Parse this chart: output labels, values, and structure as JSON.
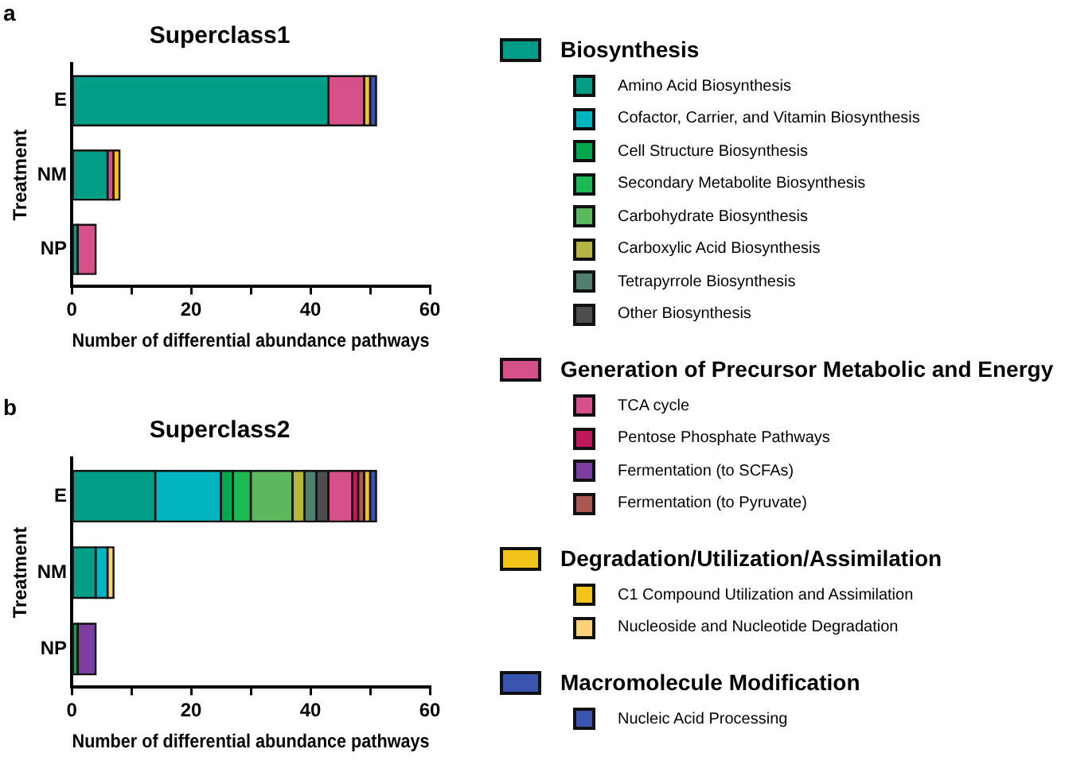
{
  "chart_data": [
    {
      "type": "bar",
      "orientation": "horizontal",
      "stacked": true,
      "title": "Superclass1",
      "xlabel": "Number of differential abundance pathways",
      "ylabel": "Treatment",
      "annotations": [
        "a"
      ],
      "categories": [
        "E",
        "NM",
        "NP"
      ],
      "xlim": [
        0,
        60
      ],
      "xticks": [
        0,
        {
          "value": 10,
          "label": null
        },
        20,
        {
          "value": 30,
          "label": null
        },
        40,
        {
          "value": 50,
          "label": null
        },
        60
      ],
      "grid": false,
      "legend": "right",
      "series": [
        {
          "name": "Biosynthesis",
          "color": "#009e87",
          "values": [
            43,
            6,
            1
          ]
        },
        {
          "name": "Generation of Precursor Metabolic and Energy",
          "color": "#d6508a",
          "values": [
            6,
            1,
            3
          ]
        },
        {
          "name": "Degradation/Utilization/Assimilation",
          "color": "#f2c318",
          "values": [
            1,
            1,
            null
          ]
        },
        {
          "name": "Macromolecule Modification",
          "color": "#3a55b0",
          "values": [
            1,
            null,
            null
          ]
        }
      ]
    },
    {
      "type": "bar",
      "orientation": "horizontal",
      "stacked": true,
      "title": "Superclass2",
      "xlabel": "Number of differential abundance pathways",
      "ylabel": "Treatment",
      "annotations": [
        "b"
      ],
      "categories": [
        "E",
        "NM",
        "NP"
      ],
      "xlim": [
        0,
        60
      ],
      "xticks": [
        0,
        {
          "value": 10,
          "label": null
        },
        20,
        {
          "value": 30,
          "label": null
        },
        40,
        {
          "value": 50,
          "label": null
        },
        60
      ],
      "grid": false,
      "legend": "right",
      "series": [
        {
          "name": "Amino Acid Biosynthesis",
          "color": "#009e87",
          "values": [
            14,
            4,
            null
          ]
        },
        {
          "name": "Cofactor, Carrier, and Vitamin Biosynthesis",
          "color": "#00b5c0",
          "values": [
            11,
            2,
            null
          ]
        },
        {
          "name": "Cell Structure Biosynthesis",
          "color": "#00a850",
          "values": [
            2,
            null,
            1
          ]
        },
        {
          "name": "Secondary Metabolite Biosynthesis",
          "color": "#1db954",
          "values": [
            3,
            null,
            null
          ]
        },
        {
          "name": "Carbohydrate Biosynthesis",
          "color": "#5cb85c",
          "values": [
            7,
            null,
            null
          ]
        },
        {
          "name": "Carboxylic Acid Biosynthesis",
          "color": "#b5b540",
          "values": [
            2,
            null,
            null
          ]
        },
        {
          "name": "Tetrapyrrole Biosynthesis",
          "color": "#507f70",
          "values": [
            2,
            null,
            null
          ]
        },
        {
          "name": "Other Biosynthesis",
          "color": "#4d4d4d",
          "values": [
            2,
            null,
            null
          ]
        },
        {
          "name": "TCA cycle",
          "color": "#d6508a",
          "values": [
            4,
            null,
            null
          ]
        },
        {
          "name": "Pentose Phosphate Pathways",
          "color": "#c0185a",
          "values": [
            1,
            null,
            null
          ]
        },
        {
          "name": "Fermentation (to SCFAs)",
          "color": "#7a3ea0",
          "values": [
            null,
            null,
            3
          ]
        },
        {
          "name": "Fermentation (to Pyruvate)",
          "color": "#a85850",
          "values": [
            1,
            null,
            null
          ]
        },
        {
          "name": "C1 Compound Utilization and Assimilation",
          "color": "#f2c318",
          "values": [
            1,
            null,
            null
          ]
        },
        {
          "name": "Nucleoside and Nucleotide Degradation",
          "color": "#ffd27a",
          "values": [
            null,
            1,
            null
          ]
        },
        {
          "name": "Nucleic Acid Processing",
          "color": "#3a55b0",
          "values": [
            1,
            null,
            null
          ]
        }
      ]
    }
  ]
}
